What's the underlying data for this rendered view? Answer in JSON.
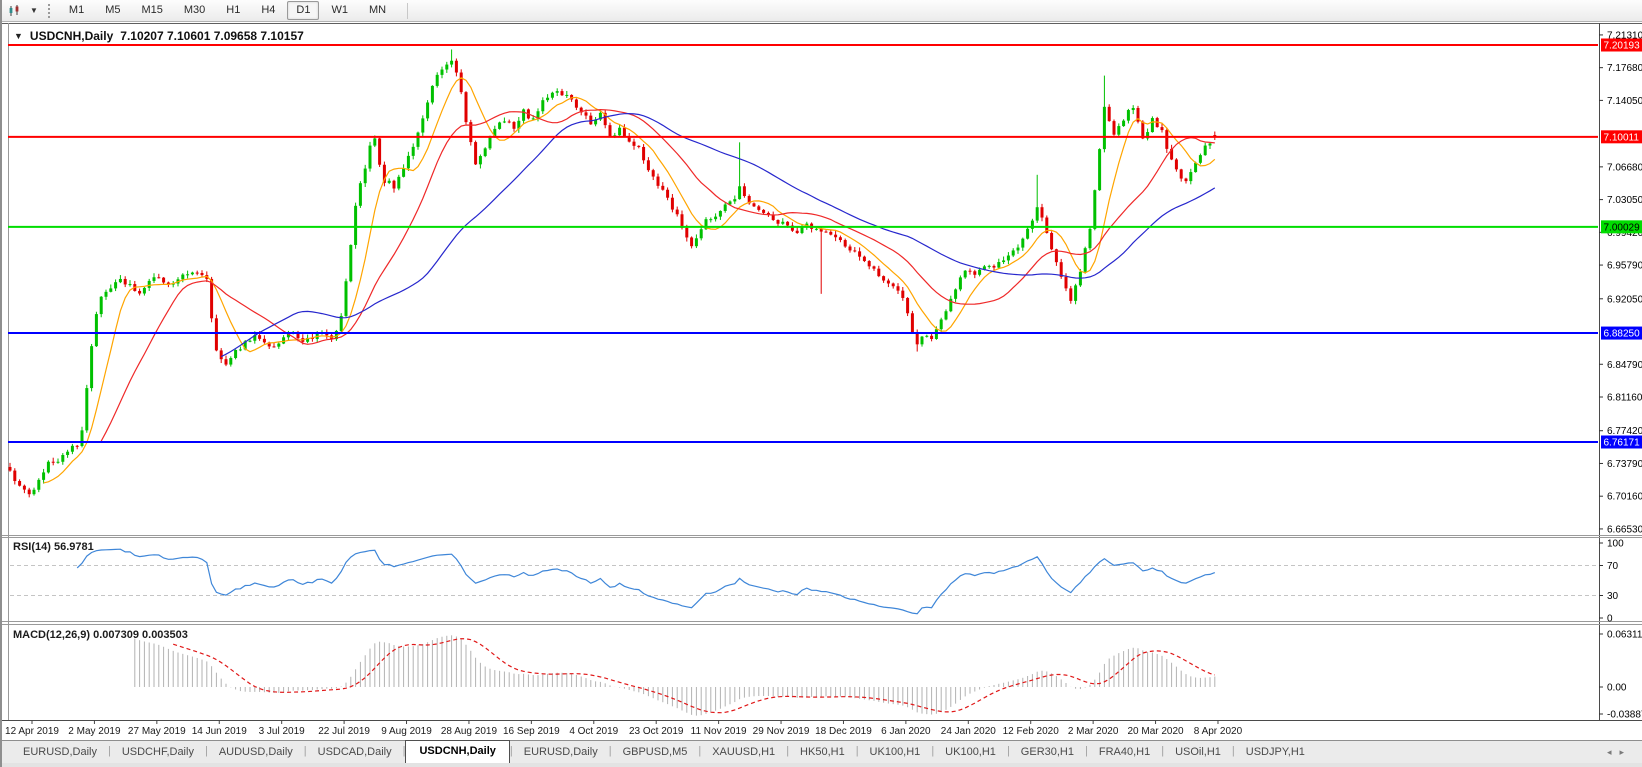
{
  "toolbar": {
    "timeframes": [
      "M1",
      "M5",
      "M15",
      "M30",
      "H1",
      "H4",
      "D1",
      "W1",
      "MN"
    ],
    "active_timeframe": "D1"
  },
  "chart": {
    "collapse_icon": "▼",
    "title": "USDCNH,Daily",
    "ohlc_text": "7.10207 7.10601 7.09658 7.10157",
    "rsi_label": "RSI(14) 56.9781",
    "macd_label": "MACD(12,26,9) 0.007309 0.003503",
    "price_axis_ticks": [
      {
        "v": 7.2131,
        "label": "7.21310"
      },
      {
        "v": 7.1768,
        "label": "7.17680"
      },
      {
        "v": 7.1405,
        "label": "7.14050"
      },
      {
        "v": 7.0668,
        "label": "7.06680"
      },
      {
        "v": 7.0305,
        "label": "7.03050"
      },
      {
        "v": 6.9942,
        "label": "6.99420"
      },
      {
        "v": 6.9579,
        "label": "6.95790"
      },
      {
        "v": 6.9205,
        "label": "6.92050"
      },
      {
        "v": 6.8479,
        "label": "6.84790"
      },
      {
        "v": 6.8116,
        "label": "6.81160"
      },
      {
        "v": 6.7742,
        "label": "6.77420"
      },
      {
        "v": 6.7379,
        "label": "6.73790"
      },
      {
        "v": 6.7016,
        "label": "6.70160"
      },
      {
        "v": 6.6653,
        "label": "6.66530"
      }
    ],
    "price_lines": [
      {
        "value": 7.20193,
        "label": "7.20193",
        "color": "#ff0000",
        "text_color": "#ffffff",
        "width": 2
      },
      {
        "value": 7.10011,
        "label": "7.10011",
        "color": "#ff0000",
        "text_color": "#ffffff",
        "width": 2
      },
      {
        "value": 7.00029,
        "label": "7.00029",
        "color": "#00dd00",
        "text_color": "#000000",
        "width": 2
      },
      {
        "value": 6.8825,
        "label": "6.88250",
        "color": "#0000ff",
        "text_color": "#ffffff",
        "width": 2
      },
      {
        "value": 6.76171,
        "label": "6.76171",
        "color": "#0000ff",
        "text_color": "#ffffff",
        "width": 2
      }
    ],
    "rsi_axis_ticks": [
      {
        "v": 100,
        "label": "100",
        "dashed": false
      },
      {
        "v": 70,
        "label": "70",
        "dashed": true
      },
      {
        "v": 30,
        "label": "30",
        "dashed": true
      },
      {
        "v": 0,
        "label": "0",
        "dashed": false
      }
    ],
    "macd_axis_ticks": [
      {
        "v": 0.063113,
        "label": "0.063113"
      },
      {
        "v": 0,
        "label": "0.00"
      },
      {
        "v": -0.038872,
        "label": "-0.038872"
      }
    ],
    "date_labels": [
      "12 Apr 2019",
      "2 May 2019",
      "27 May 2019",
      "14 Jun 2019",
      "3 Jul 2019",
      "22 Jul 2019",
      "9 Aug 2019",
      "28 Aug 2019",
      "16 Sep 2019",
      "4 Oct 2019",
      "23 Oct 2019",
      "11 Nov 2019",
      "29 Nov 2019",
      "18 Dec 2019",
      "6 Jan 2020",
      "24 Jan 2020",
      "12 Feb 2020",
      "2 Mar 2020",
      "20 Mar 2020",
      "8 Apr 2020"
    ]
  },
  "chart_data": {
    "type": "candlestick",
    "symbol": "USDCNH",
    "timeframe": "Daily",
    "last_candle": {
      "open": 7.10207,
      "high": 7.10601,
      "low": 7.09658,
      "close": 7.10157
    },
    "price_range_visible": [
      6.6653,
      7.2131
    ],
    "horizontal_levels": [
      7.20193,
      7.10011,
      7.00029,
      6.8825,
      6.76171
    ],
    "num_candles": 252,
    "close_keyframes": [
      [
        0,
        6.73
      ],
      [
        2,
        6.712
      ],
      [
        4,
        6.701
      ],
      [
        6,
        6.722
      ],
      [
        8,
        6.738
      ],
      [
        10,
        6.742
      ],
      [
        12,
        6.752
      ],
      [
        14,
        6.757
      ],
      [
        15,
        6.776
      ],
      [
        16,
        6.822
      ],
      [
        17,
        6.868
      ],
      [
        18,
        6.906
      ],
      [
        19,
        6.92
      ],
      [
        21,
        6.932
      ],
      [
        23,
        6.94
      ],
      [
        25,
        6.936
      ],
      [
        27,
        6.926
      ],
      [
        29,
        6.938
      ],
      [
        31,
        6.945
      ],
      [
        33,
        6.936
      ],
      [
        35,
        6.941
      ],
      [
        37,
        6.948
      ],
      [
        39,
        6.952
      ],
      [
        41,
        6.94
      ],
      [
        42,
        6.896
      ],
      [
        43,
        6.862
      ],
      [
        45,
        6.85
      ],
      [
        47,
        6.862
      ],
      [
        49,
        6.872
      ],
      [
        51,
        6.88
      ],
      [
        53,
        6.872
      ],
      [
        55,
        6.866
      ],
      [
        57,
        6.878
      ],
      [
        59,
        6.884
      ],
      [
        61,
        6.874
      ],
      [
        63,
        6.878
      ],
      [
        65,
        6.882
      ],
      [
        67,
        6.876
      ],
      [
        68,
        6.882
      ],
      [
        69,
        6.901
      ],
      [
        70,
        6.938
      ],
      [
        71,
        6.982
      ],
      [
        72,
        7.022
      ],
      [
        73,
        7.048
      ],
      [
        74,
        7.062
      ],
      [
        75,
        7.088
      ],
      [
        76,
        7.098
      ],
      [
        77,
        7.072
      ],
      [
        78,
        7.048
      ],
      [
        79,
        7.053
      ],
      [
        80,
        7.044
      ],
      [
        81,
        7.058
      ],
      [
        82,
        7.064
      ],
      [
        83,
        7.076
      ],
      [
        84,
        7.09
      ],
      [
        85,
        7.102
      ],
      [
        86,
        7.122
      ],
      [
        87,
        7.14
      ],
      [
        88,
        7.158
      ],
      [
        89,
        7.168
      ],
      [
        90,
        7.172
      ],
      [
        91,
        7.18
      ],
      [
        92,
        7.185
      ],
      [
        93,
        7.17
      ],
      [
        94,
        7.148
      ],
      [
        95,
        7.118
      ],
      [
        96,
        7.092
      ],
      [
        97,
        7.07
      ],
      [
        98,
        7.076
      ],
      [
        99,
        7.088
      ],
      [
        100,
        7.098
      ],
      [
        101,
        7.108
      ],
      [
        103,
        7.12
      ],
      [
        105,
        7.108
      ],
      [
        107,
        7.128
      ],
      [
        109,
        7.118
      ],
      [
        111,
        7.142
      ],
      [
        113,
        7.15
      ],
      [
        115,
        7.148
      ],
      [
        117,
        7.142
      ],
      [
        119,
        7.128
      ],
      [
        121,
        7.114
      ],
      [
        123,
        7.126
      ],
      [
        125,
        7.1
      ],
      [
        127,
        7.108
      ],
      [
        129,
        7.094
      ],
      [
        131,
        7.086
      ],
      [
        133,
        7.064
      ],
      [
        135,
        7.048
      ],
      [
        137,
        7.032
      ],
      [
        139,
        7.012
      ],
      [
        141,
        6.99
      ],
      [
        142,
        6.98
      ],
      [
        143,
        6.986
      ],
      [
        144,
        6.996
      ],
      [
        145,
        7.006
      ],
      [
        147,
        7.014
      ],
      [
        149,
        7.024
      ],
      [
        151,
        7.034
      ],
      [
        152,
        7.044
      ],
      [
        154,
        7.028
      ],
      [
        156,
        7.018
      ],
      [
        158,
        7.012
      ],
      [
        160,
        7.006
      ],
      [
        162,
        7.0
      ],
      [
        164,
        6.996
      ],
      [
        166,
        7.006
      ],
      [
        168,
        6.996
      ],
      [
        170,
        6.994
      ],
      [
        172,
        6.988
      ],
      [
        174,
        6.98
      ],
      [
        176,
        6.972
      ],
      [
        178,
        6.96
      ],
      [
        180,
        6.952
      ],
      [
        182,
        6.942
      ],
      [
        184,
        6.936
      ],
      [
        186,
        6.924
      ],
      [
        187,
        6.902
      ],
      [
        188,
        6.884
      ],
      [
        189,
        6.871
      ],
      [
        190,
        6.876
      ],
      [
        191,
        6.882
      ],
      [
        192,
        6.876
      ],
      [
        193,
        6.886
      ],
      [
        194,
        6.896
      ],
      [
        195,
        6.906
      ],
      [
        196,
        6.92
      ],
      [
        197,
        6.932
      ],
      [
        198,
        6.944
      ],
      [
        199,
        6.954
      ],
      [
        200,
        6.95
      ],
      [
        201,
        6.946
      ],
      [
        203,
        6.954
      ],
      [
        205,
        6.958
      ],
      [
        207,
        6.966
      ],
      [
        209,
        6.972
      ],
      [
        211,
        6.988
      ],
      [
        212,
        6.998
      ],
      [
        213,
        7.01
      ],
      [
        214,
        7.02
      ],
      [
        215,
        7.008
      ],
      [
        216,
        6.996
      ],
      [
        217,
        6.978
      ],
      [
        218,
        6.962
      ],
      [
        219,
        6.946
      ],
      [
        220,
        6.93
      ],
      [
        221,
        6.918
      ],
      [
        222,
        6.934
      ],
      [
        223,
        6.952
      ],
      [
        224,
        6.976
      ],
      [
        225,
        6.996
      ],
      [
        226,
        7.038
      ],
      [
        227,
        7.088
      ],
      [
        228,
        7.134
      ],
      [
        229,
        7.118
      ],
      [
        230,
        7.102
      ],
      [
        231,
        7.112
      ],
      [
        232,
        7.12
      ],
      [
        233,
        7.128
      ],
      [
        234,
        7.132
      ],
      [
        235,
        7.114
      ],
      [
        236,
        7.098
      ],
      [
        237,
        7.108
      ],
      [
        238,
        7.118
      ],
      [
        239,
        7.112
      ],
      [
        240,
        7.106
      ],
      [
        241,
        7.084
      ],
      [
        242,
        7.072
      ],
      [
        243,
        7.062
      ],
      [
        244,
        7.056
      ],
      [
        245,
        7.052
      ],
      [
        246,
        7.06
      ],
      [
        247,
        7.07
      ],
      [
        248,
        7.08
      ],
      [
        249,
        7.088
      ],
      [
        250,
        7.094
      ],
      [
        251,
        7.10157
      ]
    ],
    "wick_overrides": [
      {
        "i": 92,
        "h": 7.197
      },
      {
        "i": 152,
        "h": 7.094
      },
      {
        "i": 169,
        "l": 6.926
      },
      {
        "i": 189,
        "l": 6.862
      },
      {
        "i": 214,
        "h": 7.058
      },
      {
        "i": 228,
        "h": 7.168
      },
      {
        "i": 251,
        "o": 7.10207,
        "h": 7.10601,
        "l": 7.09658,
        "c": 7.10157
      }
    ],
    "moving_averages": [
      {
        "period": 8,
        "color": "#ffa500",
        "name": "ma-fast-orange"
      },
      {
        "period": 20,
        "color": "#ef2929",
        "name": "ma-mid-red"
      },
      {
        "period": 45,
        "color": "#2727cd",
        "name": "ma-slow-blue"
      }
    ],
    "rsi": {
      "period": 14,
      "levels": [
        70,
        30
      ],
      "current": 56.9781,
      "range": [
        0,
        100
      ]
    },
    "macd": {
      "fast": 12,
      "slow": 26,
      "signal": 9,
      "current_macd": 0.007309,
      "current_signal": 0.003503,
      "axis_max": 0.063113,
      "axis_min": -0.038872
    }
  },
  "tabs": {
    "items": [
      "EURUSD,Daily",
      "USDCHF,Daily",
      "AUDUSD,Daily",
      "USDCAD,Daily",
      "USDCNH,Daily",
      "EURUSD,Daily",
      "GBPUSD,M5",
      "XAUUSD,H1",
      "HK50,H1",
      "UK100,H1",
      "UK100,H1",
      "GER30,H1",
      "FRA40,H1",
      "USOil,H1",
      "USDJPY,H1"
    ],
    "active_index": 4,
    "scroll_left_icon": "◂",
    "scroll_right_icon": "▸"
  },
  "colors": {
    "candle_up": "#00c000",
    "candle_down": "#e00000",
    "rsi_line": "#3e86d8",
    "macd_bar": "#b2b2b2",
    "macd_signal": "#e01818",
    "level_dash": "#c4c4c4",
    "border": "#6e6e6e",
    "axis_text": "#000000"
  }
}
